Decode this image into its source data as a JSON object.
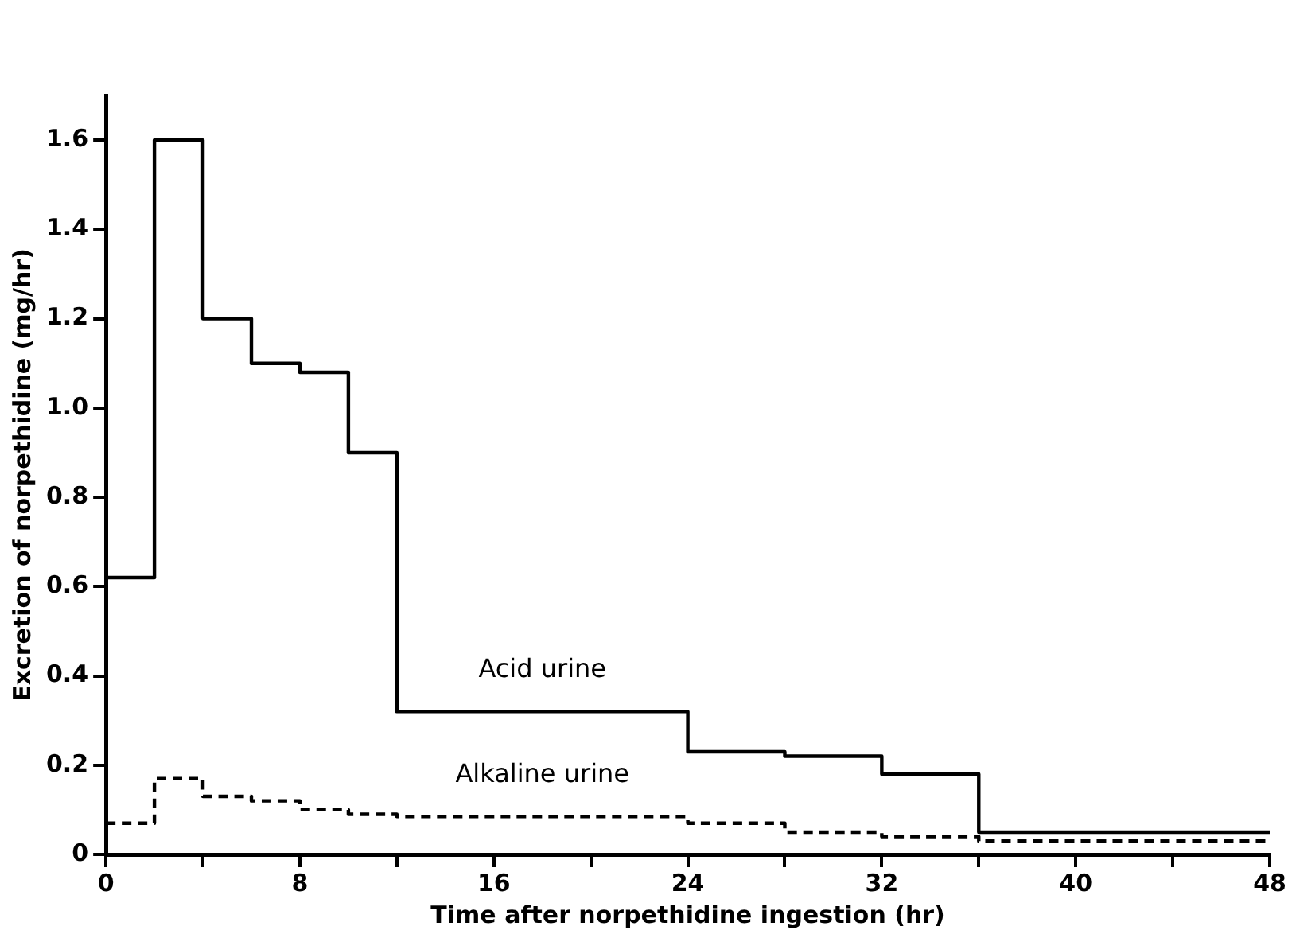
{
  "chart_data": {
    "type": "step",
    "xlabel": "Time after norpethidine ingestion (hr)",
    "ylabel": "Excretion of norpethidine (mg/hr)",
    "x": [
      0,
      2,
      4,
      6,
      8,
      10,
      12,
      24,
      28,
      32,
      36,
      48
    ],
    "series": [
      {
        "name": "Acid urine",
        "color": "#000000",
        "line_style": "solid",
        "values": [
          0.62,
          1.6,
          1.2,
          1.1,
          1.08,
          0.9,
          0.32,
          0.23,
          0.22,
          0.18,
          0.05,
          0.05
        ]
      },
      {
        "name": "Alkaline urine",
        "color": "#000000",
        "line_style": "dashed",
        "values": [
          0.07,
          0.17,
          0.13,
          0.12,
          0.1,
          0.09,
          0.085,
          0.07,
          0.05,
          0.04,
          0.03,
          0.03
        ]
      }
    ],
    "xlim": [
      0,
      48
    ],
    "ylim": [
      0,
      1.7
    ],
    "xticks": [
      0,
      {
        "value": 4,
        "label": null
      },
      8,
      {
        "value": 12,
        "label": null
      },
      16,
      {
        "value": 20,
        "label": null
      },
      24,
      {
        "value": 28,
        "label": null
      },
      32,
      {
        "value": 36,
        "label": null
      },
      40,
      {
        "value": 44,
        "label": null
      },
      48
    ],
    "yticks": [
      0,
      0.2,
      0.4,
      0.6,
      0.8,
      {
        "value": 1,
        "label": "1.0"
      },
      1.2,
      1.4,
      1.6
    ],
    "grid": false,
    "legend": false
  }
}
